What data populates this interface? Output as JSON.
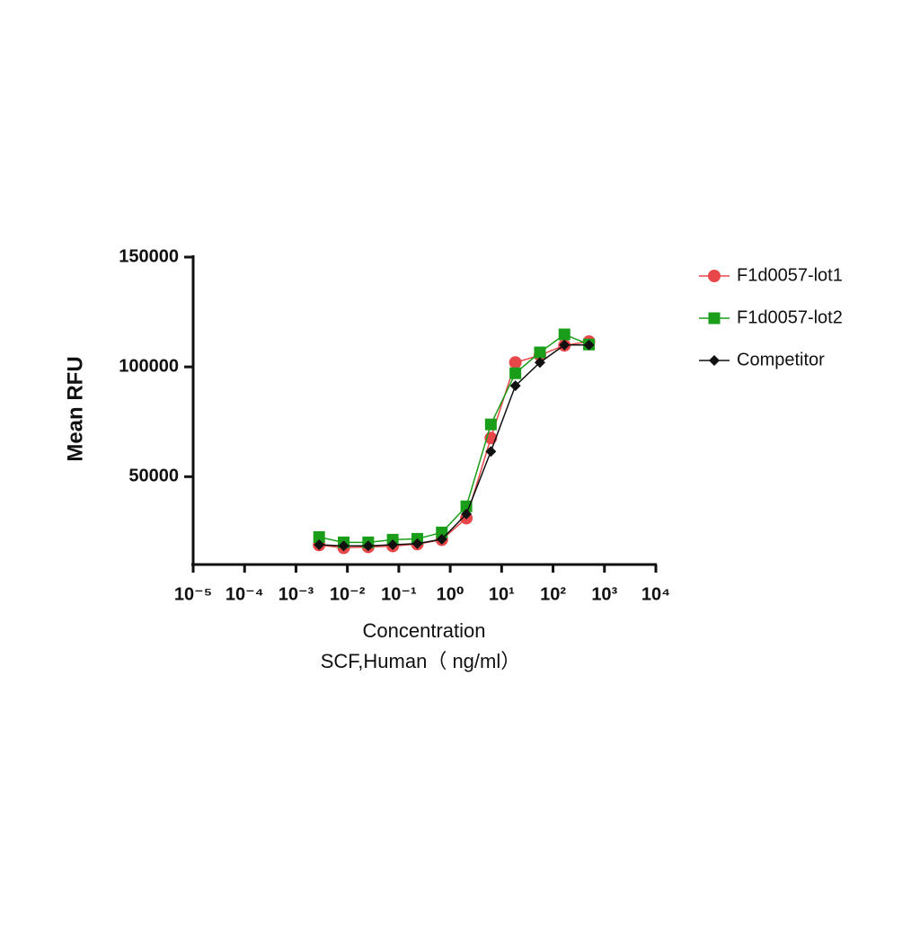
{
  "chart_data": {
    "type": "scatter",
    "ylabel": "Mean RFU",
    "xlabel": [
      "Concentration",
      "SCF,Human（ ng/ml）"
    ],
    "log_x": true,
    "xlim": [
      1e-05,
      10000
    ],
    "xticks": [
      {
        "value": 1e-05,
        "label": "10⁻⁵"
      },
      {
        "value": 0.0001,
        "label": "10⁻⁴"
      },
      {
        "value": 0.001,
        "label": "10⁻³"
      },
      {
        "value": 0.01,
        "label": "10⁻²"
      },
      {
        "value": 0.1,
        "label": "10⁻¹"
      },
      {
        "value": 1,
        "label": "10⁰"
      },
      {
        "value": 10,
        "label": "10¹"
      },
      {
        "value": 100,
        "label": "10²"
      },
      {
        "value": 1000,
        "label": "10³"
      },
      {
        "value": 10000,
        "label": "10⁴"
      }
    ],
    "ylim": [
      10000,
      150000
    ],
    "yticks": [
      50000,
      100000,
      150000
    ],
    "x": [
      0.00282,
      0.00847,
      0.0254,
      0.0762,
      0.229,
      0.686,
      2.06,
      6.17,
      18.5,
      55.6,
      166.7,
      500
    ],
    "series": [
      {
        "name": "F1d0057-lot1",
        "color": "#e8474a",
        "marker": "circle",
        "values": [
          18900,
          17600,
          18000,
          18400,
          19300,
          21300,
          31100,
          67600,
          102000,
          105300,
          109800,
          111500
        ]
      },
      {
        "name": "F1d0057-lot2",
        "color": "#1a9e1a",
        "marker": "square",
        "values": [
          22500,
          20100,
          20100,
          21300,
          21700,
          24600,
          36500,
          73800,
          97100,
          106600,
          114800,
          110200
        ]
      },
      {
        "name": "Competitor",
        "color": "#111111",
        "marker": "diamond",
        "values": [
          19000,
          18500,
          18500,
          19000,
          19500,
          21500,
          33000,
          61500,
          91400,
          102000,
          110000,
          110000
        ]
      }
    ]
  }
}
